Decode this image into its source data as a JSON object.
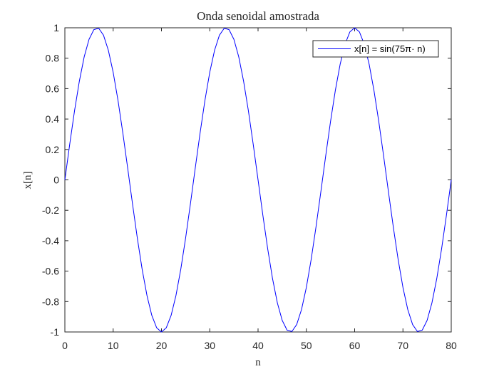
{
  "chart_data": {
    "type": "line",
    "title": "Onda senoidal amostrada",
    "xlabel": "n",
    "ylabel": "x[n]",
    "xlim": [
      0,
      80
    ],
    "ylim": [
      -1,
      1
    ],
    "xticks": [
      0,
      10,
      20,
      30,
      40,
      50,
      60,
      70,
      80
    ],
    "xtick_labels": [
      "0",
      "10",
      "20",
      "30",
      "40",
      "50",
      "60",
      "70",
      "80"
    ],
    "yticks": [
      -1,
      -0.8,
      -0.6,
      -0.4,
      -0.2,
      0,
      0.2,
      0.4,
      0.6,
      0.8,
      1
    ],
    "ytick_labels": [
      "-1",
      "-0.8",
      "-0.6",
      "-0.4",
      "-0.2",
      "0",
      "0.2",
      "0.4",
      "0.6",
      "0.8",
      "1"
    ],
    "grid": false,
    "legend_position": "top-right",
    "series": [
      {
        "name": "x[n] = sin(75π· n)",
        "color": "#0000ff",
        "x": [
          0,
          1,
          2,
          3,
          4,
          5,
          6,
          7,
          8,
          9,
          10,
          11,
          12,
          13,
          14,
          15,
          16,
          17,
          18,
          19,
          20,
          21,
          22,
          23,
          24,
          25,
          26,
          27,
          28,
          29,
          30,
          31,
          32,
          33,
          34,
          35,
          36,
          37,
          38,
          39,
          40,
          41,
          42,
          43,
          44,
          45,
          46,
          47,
          48,
          49,
          50,
          51,
          52,
          53,
          54,
          55,
          56,
          57,
          58,
          59,
          60,
          61,
          62,
          63,
          64,
          65,
          66,
          67,
          68,
          69,
          70,
          71,
          72,
          73,
          74,
          75,
          76,
          77,
          78,
          79,
          80
        ],
        "y": [
          0,
          0.2334,
          0.454,
          0.6494,
          0.809,
          0.9239,
          0.9877,
          0.9972,
          0.9511,
          0.8526,
          0.7071,
          0.5225,
          0.309,
          0.0785,
          -0.1564,
          -0.3827,
          -0.5878,
          -0.7604,
          -0.891,
          -0.9724,
          -1.0,
          -0.9724,
          -0.891,
          -0.7604,
          -0.5878,
          -0.3827,
          -0.1564,
          0.0785,
          0.309,
          0.5225,
          0.7071,
          0.8526,
          0.9511,
          0.9972,
          0.9877,
          0.9239,
          0.809,
          0.6494,
          0.454,
          0.2334,
          0,
          -0.2334,
          -0.454,
          -0.6494,
          -0.809,
          -0.9239,
          -0.9877,
          -0.9972,
          -0.9511,
          -0.8526,
          -0.7071,
          -0.5225,
          -0.309,
          -0.0785,
          0.1564,
          0.3827,
          0.5878,
          0.7604,
          0.891,
          0.9724,
          1.0,
          0.9724,
          0.891,
          0.7604,
          0.5878,
          0.3827,
          0.1564,
          -0.0785,
          -0.309,
          -0.5225,
          -0.7071,
          -0.8526,
          -0.9511,
          -0.9972,
          -0.9877,
          -0.9239,
          -0.809,
          -0.6494,
          -0.454,
          -0.2334,
          0
        ]
      }
    ]
  }
}
